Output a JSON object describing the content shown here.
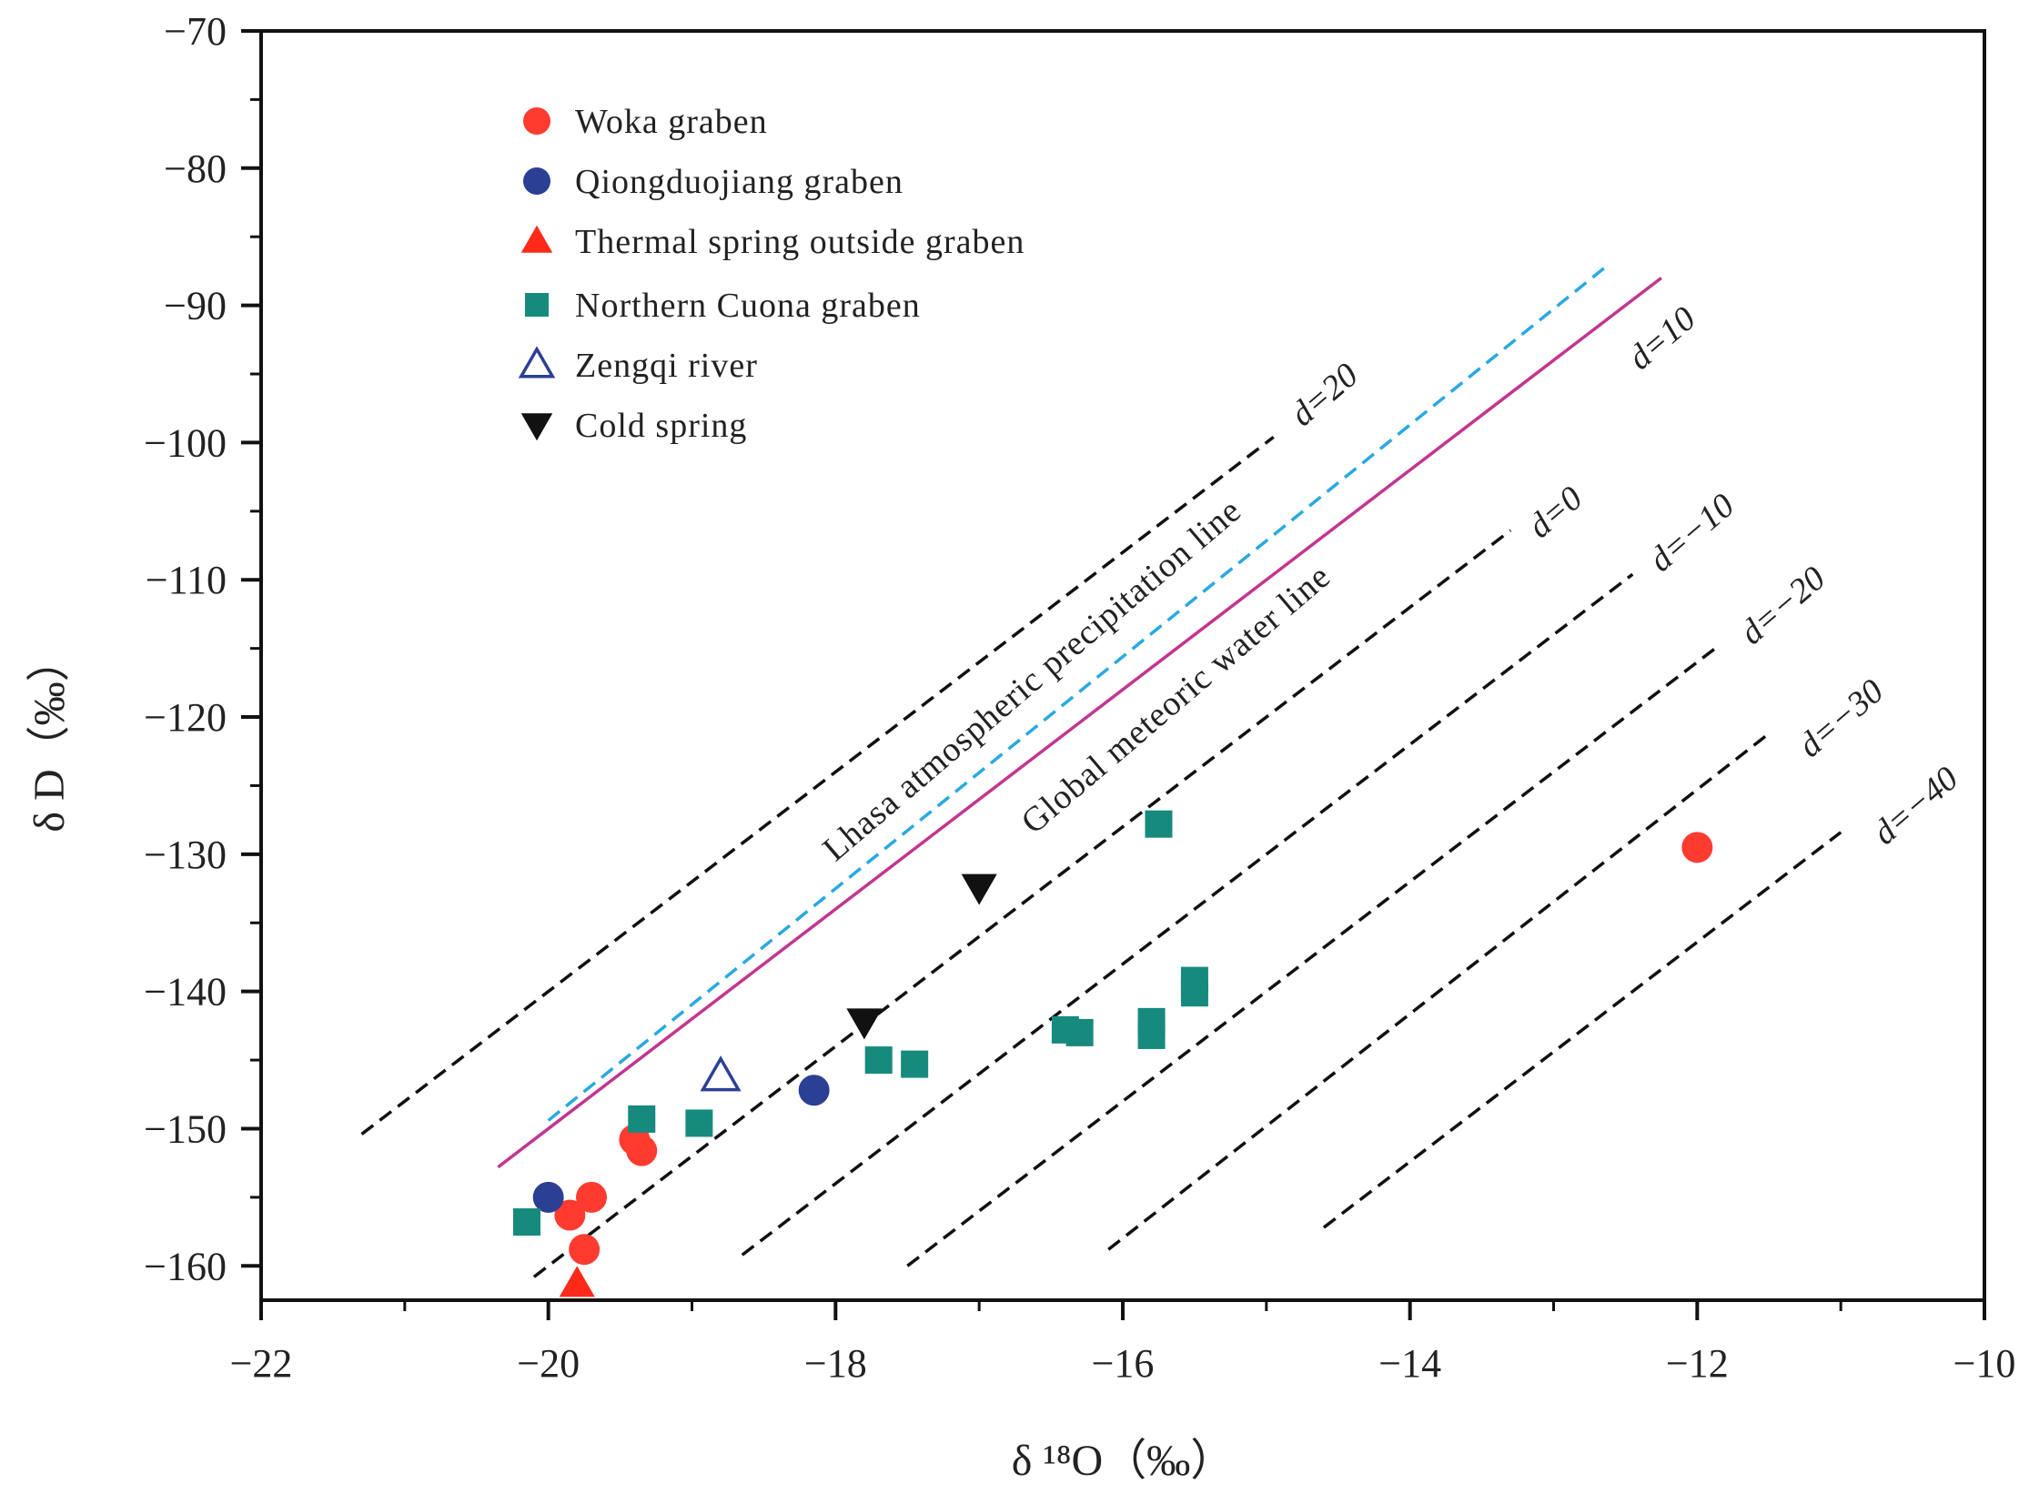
{
  "chart_data": {
    "type": "scatter",
    "title": "",
    "xlabel": "δ ¹⁸O（‰）",
    "ylabel": "δ D（‰）",
    "xlim": [
      -22,
      -10
    ],
    "ylim": [
      -162.5,
      -70
    ],
    "xticks": [
      -22,
      -20,
      -18,
      -16,
      -14,
      -12,
      -10
    ],
    "yticks": [
      -70,
      -80,
      -90,
      -100,
      -110,
      -120,
      -130,
      -140,
      -150,
      -160
    ],
    "legend_position": "top-left",
    "grid": false,
    "colors": {
      "woka": "#ff3b30",
      "qiongduojiang": "#2b3f94",
      "thermal_spring": "#ff2a1a",
      "northern_cuona": "#168a7d",
      "zengqi": "#2b3f94",
      "cold_spring": "#111111",
      "lhasa_line": "#29a9e0",
      "global_line": "#c2368f",
      "d_lines": "#111111"
    },
    "series": [
      {
        "name": "Woka graben",
        "marker": "circle",
        "color": "#ff3b30",
        "points": [
          [
            -19.4,
            -150.8
          ],
          [
            -19.35,
            -151.6
          ],
          [
            -19.7,
            -155
          ],
          [
            -19.85,
            -156.3
          ],
          [
            -19.75,
            -158.8
          ],
          [
            -12,
            -129.5
          ]
        ]
      },
      {
        "name": "Qiongduojiang graben",
        "marker": "circle",
        "color": "#2b3f94",
        "points": [
          [
            -20,
            -155
          ],
          [
            -18.15,
            -147.2
          ]
        ]
      },
      {
        "name": "Thermal spring outside graben",
        "marker": "triangle-up",
        "color": "#ff2a1a",
        "points": [
          [
            -19.8,
            -161.3
          ]
        ]
      },
      {
        "name": "Northern Cuona graben",
        "marker": "square",
        "color": "#168a7d",
        "points": [
          [
            -20.15,
            -156.8
          ],
          [
            -19.35,
            -149.3
          ],
          [
            -18.95,
            -149.6
          ],
          [
            -17.7,
            -145
          ],
          [
            -17.45,
            -145.3
          ],
          [
            -16.4,
            -142.8
          ],
          [
            -16.3,
            -143
          ],
          [
            -15.8,
            -142.2
          ],
          [
            -15.8,
            -143.2
          ],
          [
            -15.75,
            -127.8
          ],
          [
            -15.5,
            -139.2
          ],
          [
            -15.5,
            -140.1
          ]
        ]
      },
      {
        "name": "Zengqi river",
        "marker": "triangle-up-open",
        "color": "#2b3f94",
        "points": [
          [
            -18.8,
            -146.2
          ]
        ]
      },
      {
        "name": "Cold spring",
        "marker": "triangle-down",
        "color": "#111111",
        "points": [
          [
            -17.8,
            -142.2
          ],
          [
            -17,
            -132.4
          ]
        ]
      }
    ],
    "reference_lines": [
      {
        "name": "Lhasa atmospheric precipitation line",
        "style": "dashed",
        "color": "#29a9e0",
        "x": [
          -20,
          -12.65
        ],
        "y": [
          -149.4,
          -87.3
        ]
      },
      {
        "name": "Global meteoric water line",
        "style": "solid",
        "color": "#c2368f",
        "x": [
          -20.35,
          -12.25
        ],
        "y": [
          -152.8,
          -88
        ]
      },
      {
        "name": "d=20",
        "style": "dashed",
        "color": "#111111",
        "x": [
          -21.3,
          -14.95
        ],
        "y": [
          -150.4,
          -99.6
        ]
      },
      {
        "name": "d=0",
        "style": "dashed",
        "color": "#111111",
        "x": [
          -20.1,
          -13.3
        ],
        "y": [
          -160.8,
          -106.4
        ]
      },
      {
        "name": "d=−10",
        "style": "dashed",
        "color": "#111111",
        "x": [
          -18.65,
          -12.45
        ],
        "y": [
          -159.2,
          -109.6
        ]
      },
      {
        "name": "d=−20",
        "style": "dashed",
        "color": "#111111",
        "x": [
          -17.5,
          -11.85
        ],
        "y": [
          -160,
          -114.8
        ]
      },
      {
        "name": "d=−30",
        "style": "dashed",
        "color": "#111111",
        "x": [
          -16.1,
          -11.5
        ],
        "y": [
          -158.8,
          -121.2
        ]
      },
      {
        "name": "d=−40",
        "style": "dashed",
        "color": "#111111",
        "x": [
          -14.6,
          -11
        ],
        "y": [
          -157.2,
          -128.4
        ]
      }
    ],
    "annotations": {
      "lhasa": "Lhasa atmospheric precipitation line",
      "global": "Global meteoric water line",
      "d20": "d=20",
      "d10": "d=10",
      "d0": "d=0",
      "dm10": "d=−10",
      "dm20": "d=−20",
      "dm30": "d=−30",
      "dm40": "d=−40"
    }
  }
}
